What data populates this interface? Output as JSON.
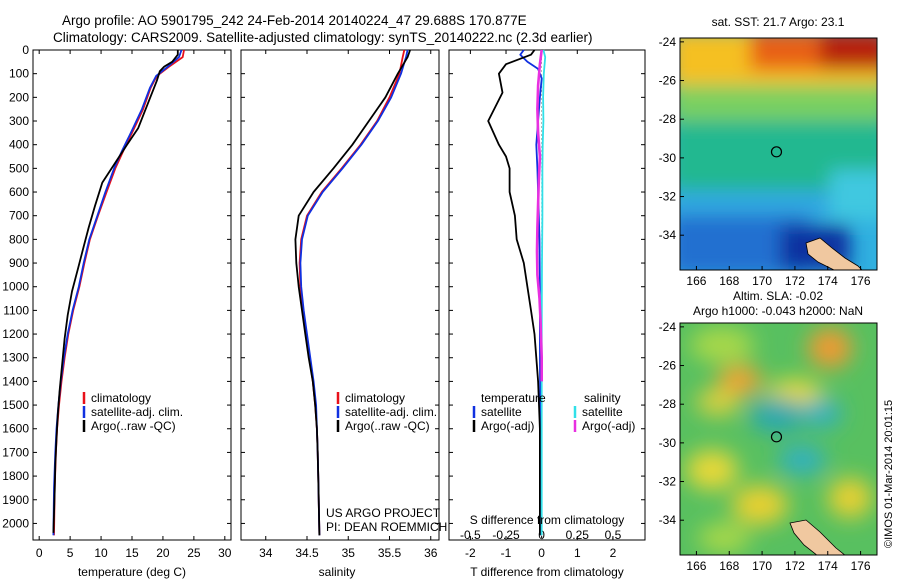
{
  "header": {
    "line1": "Argo profile: AO 5901795_242 24-Feb-2014 20140224_47 29.688S 170.877E",
    "line2": "Climatology: CARS2009. Satellite-adjusted climatology: synTS_20140222.nc (2.3d earlier)"
  },
  "colors": {
    "climatology": "#e8101a",
    "satellite": "#1030e0",
    "argo": "#000000",
    "sat_salinity": "#30e0e8",
    "argo_salinity_adj": "#e830e0",
    "land": "#f0c8a0"
  },
  "chart_data": [
    {
      "type": "line",
      "id": "temperature",
      "xlabel": "temperature (deg C)",
      "ylabel": "",
      "xlim": [
        -1,
        31
      ],
      "ylim": [
        2070,
        0
      ],
      "xticks": [
        0,
        5,
        10,
        15,
        20,
        25,
        30
      ],
      "xticklabels": [
        "0",
        "5",
        "10",
        "15",
        "20",
        "25",
        "30"
      ],
      "yticks": [
        0,
        100,
        200,
        300,
        400,
        500,
        600,
        700,
        800,
        900,
        1000,
        1100,
        1200,
        1300,
        1400,
        1500,
        1600,
        1700,
        1800,
        1900,
        2000
      ],
      "yticklabels": [
        "0",
        "100",
        "200",
        "300",
        "400",
        "500",
        "600",
        "700",
        "800",
        "900",
        "1000",
        "1100",
        "1200",
        "1300",
        "1400",
        "1500",
        "1600",
        "1700",
        "1800",
        "1900",
        "2000"
      ],
      "legend": [
        "climatology",
        "satellite-adj. clim.",
        "Argo(..raw -QC)"
      ],
      "legend_position": "lower-center",
      "series": [
        {
          "name": "climatology",
          "color": "#e8101a",
          "x": [
            23.4,
            23.2,
            21.0,
            19.0,
            18.0,
            16.8,
            15.0,
            13.7,
            12.3,
            10.9,
            9.5,
            8.2,
            7.3,
            6.5,
            5.5,
            4.7,
            4.1,
            3.6,
            3.2,
            2.9,
            2.7,
            2.5,
            2.4
          ],
          "y": [
            0,
            30,
            70,
            110,
            160,
            250,
            350,
            420,
            500,
            600,
            700,
            800,
            900,
            1000,
            1100,
            1200,
            1300,
            1400,
            1500,
            1600,
            1700,
            1850,
            2050
          ]
        },
        {
          "name": "satellite-adj. clim.",
          "color": "#1030e0",
          "x": [
            23.0,
            22.6,
            20.8,
            18.9,
            17.9,
            16.6,
            14.8,
            13.5,
            12.1,
            10.7,
            9.4,
            8.1,
            7.2,
            6.4,
            5.4,
            4.6,
            4.0,
            3.5,
            3.1,
            2.8,
            2.6,
            2.4,
            2.3
          ],
          "y": [
            0,
            30,
            70,
            110,
            160,
            250,
            350,
            420,
            500,
            600,
            700,
            800,
            900,
            1000,
            1100,
            1200,
            1300,
            1400,
            1500,
            1600,
            1700,
            1850,
            2050
          ]
        },
        {
          "name": "Argo(..raw -QC)",
          "color": "#000000",
          "x": [
            22.4,
            22.4,
            21.5,
            20.2,
            19.5,
            19.0,
            17.5,
            16.0,
            14.2,
            12.2,
            10.2,
            9.0,
            8.0,
            7.2,
            6.3,
            5.3,
            4.6,
            4.1,
            3.7,
            3.3,
            3.0,
            2.8,
            2.6,
            2.5,
            2.4,
            2.3
          ],
          "y": [
            0,
            20,
            50,
            70,
            90,
            130,
            230,
            330,
            400,
            480,
            560,
            660,
            750,
            830,
            920,
            1020,
            1120,
            1220,
            1330,
            1440,
            1540,
            1640,
            1750,
            1860,
            1960,
            2040
          ]
        }
      ]
    },
    {
      "type": "line",
      "id": "salinity",
      "xlabel": "salinity",
      "xlim": [
        33.7,
        36.1
      ],
      "ylim": [
        2070,
        0
      ],
      "xticks": [
        34,
        34.5,
        35,
        35.5,
        36
      ],
      "xticklabels": [
        "34",
        "34.5",
        "35",
        "35.5",
        "36"
      ],
      "legend": [
        "climatology",
        "satellite-adj. clim.",
        "Argo(..raw -QC)"
      ],
      "legend_position": "lower-right",
      "annotation": [
        "US ARGO PROJECT",
        "PI: DEAN ROEMMICH"
      ],
      "series": [
        {
          "name": "climatology",
          "color": "#e8101a",
          "x": [
            35.68,
            35.66,
            35.62,
            35.5,
            35.35,
            35.15,
            34.92,
            34.68,
            34.5,
            34.43,
            34.41,
            34.42,
            34.45,
            34.49,
            34.53,
            34.57,
            34.6,
            34.62,
            34.63,
            34.64,
            34.65
          ],
          "y": [
            0,
            30,
            100,
            200,
            300,
            400,
            500,
            600,
            700,
            800,
            900,
            1000,
            1100,
            1200,
            1300,
            1400,
            1500,
            1600,
            1700,
            1850,
            2050
          ]
        },
        {
          "name": "satellite-adj. clim.",
          "color": "#1030e0",
          "x": [
            35.72,
            35.7,
            35.64,
            35.52,
            35.36,
            35.16,
            34.93,
            34.69,
            34.51,
            34.44,
            34.42,
            34.43,
            34.46,
            34.5,
            34.54,
            34.58,
            34.61,
            34.62,
            34.63,
            34.64,
            34.65
          ],
          "y": [
            0,
            30,
            100,
            200,
            300,
            400,
            500,
            600,
            700,
            800,
            900,
            1000,
            1100,
            1200,
            1300,
            1400,
            1500,
            1600,
            1700,
            1850,
            2050
          ]
        },
        {
          "name": "Argo(..raw -QC)",
          "color": "#000000",
          "x": [
            35.75,
            35.72,
            35.6,
            35.45,
            35.25,
            35.05,
            34.82,
            34.58,
            34.4,
            34.36,
            34.37,
            34.4,
            34.44,
            34.48,
            34.52,
            34.57,
            34.6,
            34.62,
            34.63,
            34.64,
            34.65
          ],
          "y": [
            0,
            30,
            100,
            200,
            300,
            400,
            500,
            600,
            700,
            800,
            900,
            1000,
            1100,
            1200,
            1300,
            1400,
            1500,
            1600,
            1700,
            1850,
            2050
          ]
        }
      ]
    },
    {
      "type": "line",
      "id": "difference",
      "xlabel": "T difference from climatology",
      "xlabel_top": "S difference from climatology",
      "xlim": [
        -2.6,
        2.9
      ],
      "ylim": [
        2070,
        0
      ],
      "xticks": [
        -2,
        -1,
        0,
        1,
        2
      ],
      "xticklabels": [
        "-2",
        "-1",
        "0",
        "1",
        "2"
      ],
      "sticks": [
        -0.5,
        -0.25,
        0,
        0.25,
        0.5
      ],
      "sticklabels": [
        "-0.5",
        "-0.25",
        "0",
        "0.25",
        "0.5"
      ],
      "legend_headers": [
        "temperature",
        "salinity"
      ],
      "legend": [
        "satellite",
        "Argo(-adj)",
        "satellite",
        "Argo(-adj)"
      ],
      "series": [
        {
          "name": "temperature satellite",
          "color": "#1030e0",
          "x": [
            -0.5,
            -0.6,
            -0.4,
            -0.1,
            0.0,
            -0.05,
            -0.1,
            -0.15,
            -0.12,
            -0.1,
            -0.08,
            -0.06,
            -0.05,
            -0.05,
            -0.04,
            -0.04,
            -0.03
          ],
          "y": [
            0,
            20,
            50,
            80,
            120,
            200,
            300,
            400,
            500,
            600,
            700,
            800,
            1000,
            1200,
            1500,
            1800,
            2050
          ]
        },
        {
          "name": "temperature Argo(-adj)",
          "color": "#000000",
          "x": [
            -0.2,
            -0.3,
            -1.0,
            -1.2,
            -1.1,
            -1.5,
            -1.2,
            -1.0,
            -0.9,
            -0.9,
            -0.75,
            -0.7,
            -0.5,
            -0.4,
            -0.3,
            -0.2,
            -0.15,
            -0.1,
            -0.05,
            -0.05
          ],
          "y": [
            0,
            20,
            60,
            100,
            180,
            300,
            400,
            450,
            500,
            600,
            700,
            800,
            900,
            1000,
            1100,
            1200,
            1300,
            1400,
            1600,
            2050
          ]
        },
        {
          "name": "salinity satellite",
          "color": "#30e0e8",
          "x": [
            0.05,
            0.1,
            0.06,
            0.04,
            0.05,
            0.03,
            0.02,
            0.02,
            0.01,
            0.0,
            0.0,
            0.0,
            0.0
          ],
          "y": [
            0,
            30,
            100,
            200,
            300,
            400,
            500,
            700,
            900,
            1200,
            1500,
            1800,
            2050
          ]
        },
        {
          "name": "salinity Argo(-adj)",
          "color": "#e830e0",
          "x": [
            0.0,
            -0.05,
            -0.1,
            -0.12,
            -0.1,
            -0.05,
            -0.08,
            -0.1,
            -0.12,
            -0.13,
            -0.12,
            -0.06,
            -0.03,
            0.0,
            0.0
          ],
          "y": [
            0,
            60,
            150,
            250,
            350,
            450,
            550,
            650,
            750,
            850,
            950,
            1050,
            1150,
            1300,
            1400
          ]
        }
      ]
    },
    {
      "type": "heatmap",
      "id": "sst-map",
      "title": "sat. SST: 21.7  Argo: 23.1",
      "xlim": [
        165,
        177
      ],
      "ylim": [
        -35.8,
        -23.8
      ],
      "xticks": [
        166,
        168,
        170,
        172,
        174,
        176
      ],
      "yticks": [
        -24,
        -26,
        -28,
        -30,
        -32,
        -34
      ],
      "marker": {
        "lon": 170.877,
        "lat": -29.688
      }
    },
    {
      "type": "heatmap",
      "id": "sla-map",
      "title": "Altim. SLA: -0.02",
      "subtitle": "Argo h1000: -0.043 h2000: NaN",
      "xlim": [
        165,
        177
      ],
      "ylim": [
        -35.8,
        -23.8
      ],
      "xticks": [
        166,
        168,
        170,
        172,
        174,
        176
      ],
      "yticks": [
        -24,
        -26,
        -28,
        -30,
        -32,
        -34
      ],
      "marker": {
        "lon": 170.877,
        "lat": -29.688
      }
    }
  ],
  "footer": {
    "side_label": "©IMOS 01-Mar-2014 20:01:15"
  }
}
